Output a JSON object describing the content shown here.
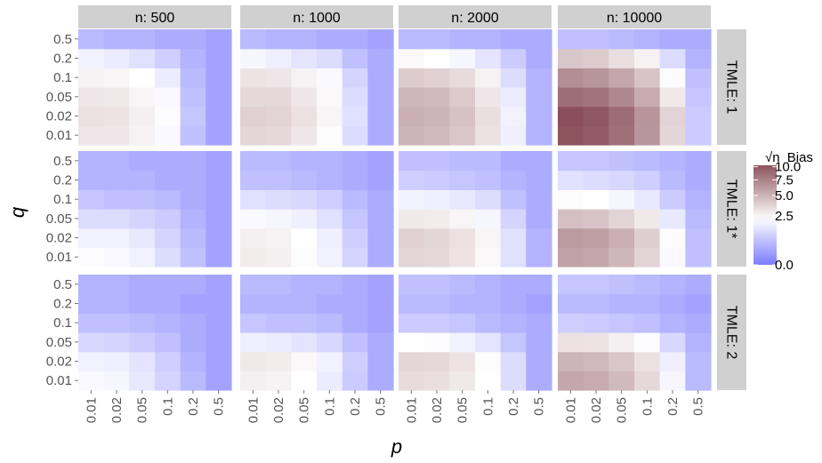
{
  "chart_data": {
    "type": "heatmap",
    "xlabel": "p",
    "ylabel": "q",
    "x_categories": [
      "0.01",
      "0.02",
      "0.05",
      "0.1",
      "0.2",
      "0.5"
    ],
    "y_categories": [
      "0.01",
      "0.02",
      "0.05",
      "0.1",
      "0.2",
      "0.5"
    ],
    "columns": [
      "n: 500",
      "n: 1000",
      "n: 2000",
      "n: 10000"
    ],
    "rows": [
      "TMLE: 1",
      "TMLE: 1*",
      "TMLE: 2"
    ],
    "legend": {
      "title_sqrt": "√n",
      "title_rest": "Bias",
      "position": "right",
      "ticks": [
        "0.0",
        "2.5",
        "5.0",
        "7.5",
        "10.0"
      ],
      "tick_values": [
        0,
        2.5,
        5,
        7.5,
        10
      ],
      "scale": "sqrt",
      "colors": {
        "low": "#7b7bff",
        "mid": "#ffffff",
        "high": "#8a4f5a"
      }
    },
    "panels": [
      [
        [
          [
            3.0,
            3.0,
            2.6,
            2.0,
            0.6,
            0.2
          ],
          [
            3.2,
            3.1,
            2.7,
            2.1,
            0.7,
            0.2
          ],
          [
            3.0,
            2.9,
            2.5,
            2.0,
            0.6,
            0.2
          ],
          [
            2.6,
            2.5,
            2.2,
            1.6,
            0.5,
            0.2
          ],
          [
            1.8,
            1.6,
            1.3,
            0.9,
            0.4,
            0.2
          ],
          [
            0.5,
            0.4,
            0.4,
            0.3,
            0.3,
            0.2
          ]
        ],
        [
          [
            3.6,
            3.5,
            3.0,
            2.3,
            1.2,
            0.3
          ],
          [
            3.8,
            3.7,
            3.2,
            2.5,
            1.3,
            0.3
          ],
          [
            3.5,
            3.5,
            3.0,
            2.4,
            1.2,
            0.3
          ],
          [
            3.1,
            3.0,
            2.6,
            2.0,
            1.0,
            0.3
          ],
          [
            1.9,
            1.7,
            1.4,
            1.2,
            0.6,
            0.3
          ],
          [
            0.5,
            0.4,
            0.4,
            0.3,
            0.3,
            0.2
          ]
        ],
        [
          [
            5.0,
            4.8,
            4.2,
            3.2,
            1.7,
            0.4
          ],
          [
            5.2,
            5.0,
            4.4,
            3.3,
            1.8,
            0.4
          ],
          [
            4.9,
            4.7,
            4.1,
            3.0,
            1.6,
            0.4
          ],
          [
            4.0,
            3.8,
            3.4,
            2.6,
            1.2,
            0.4
          ],
          [
            2.4,
            2.2,
            1.9,
            1.4,
            0.8,
            0.3
          ],
          [
            0.5,
            0.5,
            0.4,
            0.4,
            0.3,
            0.3
          ]
        ],
        [
          [
            10.2,
            9.8,
            8.5,
            6.4,
            3.6,
            0.8
          ],
          [
            10.5,
            10.0,
            8.7,
            6.5,
            3.7,
            0.8
          ],
          [
            8.6,
            8.3,
            7.2,
            5.4,
            2.9,
            0.7
          ],
          [
            6.8,
            6.5,
            5.6,
            4.3,
            2.1,
            0.6
          ],
          [
            4.2,
            4.0,
            3.3,
            2.6,
            1.2,
            0.4
          ],
          [
            0.6,
            0.6,
            0.5,
            0.4,
            0.3,
            0.3
          ]
        ]
      ],
      [
        [
          [
            2.1,
            2.0,
            1.8,
            1.2,
            0.6,
            0.2
          ],
          [
            1.8,
            1.8,
            1.5,
            1.0,
            0.5,
            0.2
          ],
          [
            1.2,
            1.2,
            1.0,
            0.8,
            0.4,
            0.2
          ],
          [
            0.7,
            0.6,
            0.6,
            0.5,
            0.3,
            0.2
          ],
          [
            0.4,
            0.4,
            0.4,
            0.3,
            0.3,
            0.2
          ],
          [
            0.4,
            0.4,
            0.3,
            0.3,
            0.3,
            0.2
          ]
        ],
        [
          [
            2.8,
            2.7,
            2.3,
            1.8,
            1.0,
            0.3
          ],
          [
            2.7,
            2.6,
            2.2,
            1.7,
            0.9,
            0.3
          ],
          [
            2.0,
            1.9,
            1.7,
            1.3,
            0.7,
            0.3
          ],
          [
            1.3,
            1.2,
            1.1,
            0.9,
            0.5,
            0.3
          ],
          [
            0.6,
            0.6,
            0.5,
            0.4,
            0.3,
            0.2
          ],
          [
            0.5,
            0.5,
            0.4,
            0.4,
            0.3,
            0.2
          ]
        ],
        [
          [
            3.6,
            3.5,
            3.1,
            2.4,
            1.3,
            0.4
          ],
          [
            3.8,
            3.6,
            3.2,
            2.5,
            1.3,
            0.4
          ],
          [
            2.9,
            2.8,
            2.5,
            1.9,
            1.0,
            0.3
          ],
          [
            1.8,
            1.7,
            1.5,
            1.2,
            0.6,
            0.3
          ],
          [
            0.9,
            0.8,
            0.7,
            0.6,
            0.4,
            0.3
          ],
          [
            0.6,
            0.6,
            0.5,
            0.5,
            0.3,
            0.3
          ]
        ],
        [
          [
            5.8,
            5.6,
            4.9,
            3.7,
            2.0,
            0.6
          ],
          [
            6.2,
            6.0,
            5.2,
            3.9,
            2.1,
            0.6
          ],
          [
            4.5,
            4.3,
            3.7,
            2.9,
            1.5,
            0.5
          ],
          [
            2.3,
            2.2,
            1.9,
            1.5,
            0.8,
            0.4
          ],
          [
            1.3,
            1.2,
            1.1,
            0.9,
            0.5,
            0.3
          ],
          [
            0.7,
            0.7,
            0.6,
            0.5,
            0.4,
            0.3
          ]
        ]
      ],
      [
        [
          [
            2.0,
            1.9,
            1.5,
            1.0,
            0.5,
            0.2
          ],
          [
            1.8,
            1.7,
            1.4,
            0.9,
            0.4,
            0.2
          ],
          [
            1.1,
            1.0,
            0.8,
            0.6,
            0.3,
            0.2
          ],
          [
            0.6,
            0.6,
            0.5,
            0.4,
            0.3,
            0.2
          ],
          [
            0.4,
            0.4,
            0.3,
            0.3,
            0.2,
            0.2
          ],
          [
            0.4,
            0.4,
            0.3,
            0.3,
            0.3,
            0.2
          ]
        ],
        [
          [
            2.7,
            2.6,
            2.2,
            1.6,
            0.8,
            0.3
          ],
          [
            2.9,
            2.8,
            2.4,
            1.8,
            0.9,
            0.3
          ],
          [
            1.7,
            1.6,
            1.4,
            1.1,
            0.6,
            0.3
          ],
          [
            0.7,
            0.6,
            0.6,
            0.5,
            0.3,
            0.2
          ],
          [
            0.4,
            0.4,
            0.4,
            0.3,
            0.3,
            0.2
          ],
          [
            0.5,
            0.5,
            0.4,
            0.4,
            0.3,
            0.2
          ]
        ],
        [
          [
            3.4,
            3.3,
            2.9,
            2.2,
            1.2,
            0.3
          ],
          [
            3.6,
            3.5,
            3.1,
            2.3,
            1.2,
            0.3
          ],
          [
            2.2,
            2.1,
            1.8,
            1.4,
            0.7,
            0.3
          ],
          [
            0.8,
            0.8,
            0.7,
            0.5,
            0.4,
            0.3
          ],
          [
            0.5,
            0.5,
            0.4,
            0.4,
            0.3,
            0.2
          ],
          [
            0.6,
            0.6,
            0.5,
            0.4,
            0.3,
            0.3
          ]
        ],
        [
          [
            5.6,
            5.4,
            4.7,
            3.5,
            1.9,
            0.5
          ],
          [
            5.0,
            4.8,
            4.2,
            3.2,
            1.7,
            0.5
          ],
          [
            3.2,
            3.1,
            2.7,
            2.1,
            1.1,
            0.4
          ],
          [
            0.9,
            0.8,
            0.7,
            0.6,
            0.4,
            0.3
          ],
          [
            0.5,
            0.5,
            0.4,
            0.4,
            0.3,
            0.2
          ],
          [
            0.7,
            0.7,
            0.6,
            0.5,
            0.4,
            0.3
          ]
        ]
      ]
    ]
  }
}
